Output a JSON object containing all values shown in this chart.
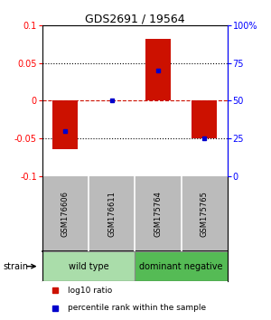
{
  "title": "GDS2691 / 19564",
  "samples": [
    "GSM176606",
    "GSM176611",
    "GSM175764",
    "GSM175765"
  ],
  "log10_ratio": [
    -0.065,
    0.001,
    0.082,
    -0.05
  ],
  "percentile_rank": [
    30,
    50,
    70,
    25
  ],
  "groups": [
    {
      "label": "wild type",
      "color": "#aaddaa",
      "samples": [
        0,
        1
      ]
    },
    {
      "label": "dominant negative",
      "color": "#66bb66",
      "samples": [
        2,
        3
      ]
    }
  ],
  "bar_color": "#cc1100",
  "dot_color": "#0000cc",
  "ylim_left": [
    -0.1,
    0.1
  ],
  "ylim_right": [
    0,
    100
  ],
  "yticks_left": [
    -0.1,
    -0.05,
    0,
    0.05,
    0.1
  ],
  "yticks_right": [
    0,
    25,
    50,
    75,
    100
  ],
  "ytick_labels_left": [
    "-0.1",
    "-0.05",
    "0",
    "0.05",
    "0.1"
  ],
  "ytick_labels_right": [
    "0",
    "25",
    "50",
    "75",
    "100%"
  ],
  "hlines_dotted": [
    -0.05,
    0.05
  ],
  "hline_dashed_val": 0,
  "hline_dashed_color": "#cc1100",
  "legend_red": "log10 ratio",
  "legend_blue": "percentile rank within the sample",
  "bar_width": 0.55,
  "strain_label": "strain",
  "background_color": "#ffffff",
  "plot_bg": "#ffffff",
  "header_bg": "#bbbbbb",
  "strain_bg_wt": "#aaddaa",
  "strain_bg_dn": "#55bb55"
}
